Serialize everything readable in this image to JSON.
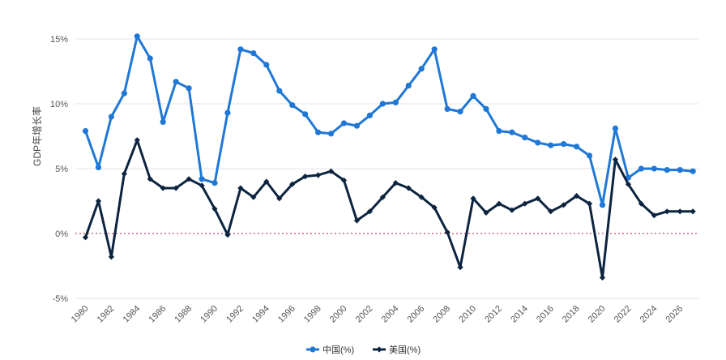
{
  "chart_data": {
    "type": "line",
    "ylabel": "GDP年增长率",
    "ylim": [
      -5,
      16
    ],
    "y_ticks": [
      -5,
      0,
      5,
      10,
      15
    ],
    "y_tick_labels": [
      "-5%",
      "0%",
      "5%",
      "10%",
      "15%"
    ],
    "x": [
      1980,
      1981,
      1982,
      1983,
      1984,
      1985,
      1986,
      1987,
      1988,
      1989,
      1990,
      1991,
      1992,
      1993,
      1994,
      1995,
      1996,
      1997,
      1998,
      1999,
      2000,
      2001,
      2002,
      2003,
      2004,
      2005,
      2006,
      2007,
      2008,
      2009,
      2010,
      2011,
      2012,
      2013,
      2014,
      2015,
      2016,
      2017,
      2018,
      2019,
      2020,
      2021,
      2022,
      2023,
      2024,
      2025,
      2026,
      2027
    ],
    "x_tick_labels": [
      "1980",
      "1982",
      "1984",
      "1986",
      "1988",
      "1990",
      "1992",
      "1994",
      "1996",
      "1998",
      "2000",
      "2002",
      "2004",
      "2006",
      "2008",
      "2010",
      "2012",
      "2014",
      "2016",
      "2018",
      "2020",
      "2022",
      "2024",
      "2026"
    ],
    "zero_line": true,
    "grid": true,
    "legend_position": "bottom",
    "series": [
      {
        "name": "中国(%)",
        "color": "#1f77d6",
        "marker": "circle",
        "values": [
          7.9,
          5.1,
          9.0,
          10.8,
          15.2,
          13.5,
          8.6,
          11.7,
          11.2,
          4.2,
          3.9,
          9.3,
          14.2,
          13.9,
          13.0,
          11.0,
          9.9,
          9.2,
          7.8,
          7.7,
          8.5,
          8.3,
          9.1,
          10.0,
          10.1,
          11.4,
          12.7,
          14.2,
          9.6,
          9.4,
          10.6,
          9.6,
          7.9,
          7.8,
          7.4,
          7.0,
          6.8,
          6.9,
          6.7,
          6.0,
          2.2,
          8.1,
          4.3,
          5.0,
          5.0,
          4.9,
          4.9,
          4.8
        ]
      },
      {
        "name": "美国(%)",
        "color": "#0c2440",
        "marker": "diamond",
        "values": [
          -0.3,
          2.5,
          -1.8,
          4.6,
          7.2,
          4.2,
          3.5,
          3.5,
          4.2,
          3.7,
          1.9,
          -0.1,
          3.5,
          2.8,
          4.0,
          2.7,
          3.8,
          4.4,
          4.5,
          4.8,
          4.1,
          1.0,
          1.7,
          2.8,
          3.9,
          3.5,
          2.8,
          2.0,
          0.1,
          -2.6,
          2.7,
          1.6,
          2.3,
          1.8,
          2.3,
          2.7,
          1.7,
          2.2,
          2.9,
          2.3,
          -3.4,
          5.7,
          3.8,
          2.3,
          1.4,
          1.7,
          1.7,
          1.7
        ]
      }
    ]
  }
}
